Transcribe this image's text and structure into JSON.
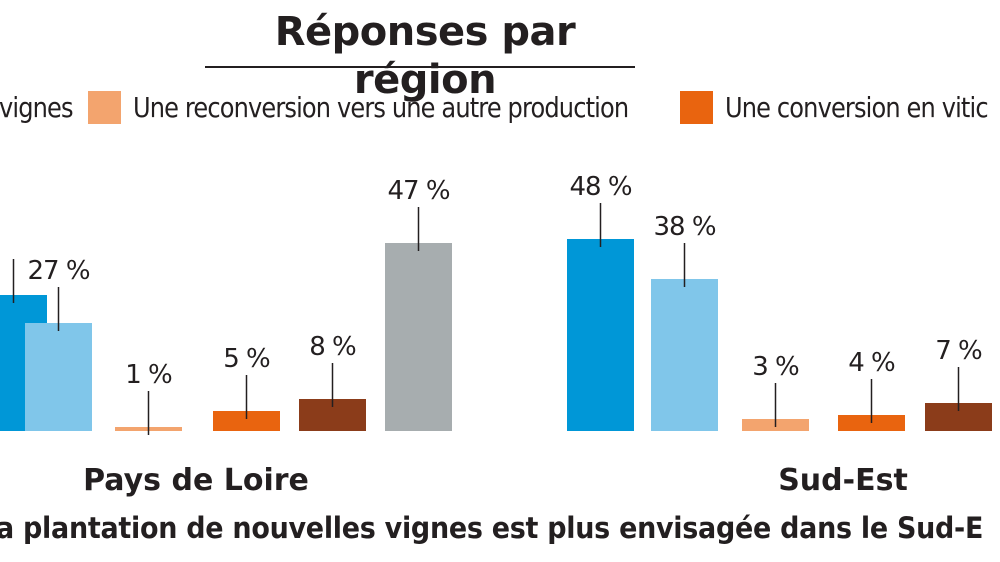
{
  "title": "Réponses par région",
  "legend": [
    {
      "label": "vignes",
      "color": "#0097d7"
    },
    {
      "label": "Une reconversion vers une autre production",
      "color": "#f3a46e"
    },
    {
      "label": "Une conversion en vitic",
      "color": "#e9640f"
    }
  ],
  "caption": "a plantation de nouvelles vignes est plus envisagée dans le Sud-E",
  "chart_data": {
    "type": "bar",
    "title": "Réponses par région",
    "ylim": [
      0,
      50
    ],
    "series_colors": [
      "#0097d7",
      "#80c6ea",
      "#f3a46e",
      "#e9640f",
      "#8b3c1a",
      "#a7adaf"
    ],
    "groups": [
      {
        "name": "Pays de Loire",
        "bars": [
          {
            "value": 34,
            "label": "",
            "color": "#0097d7"
          },
          {
            "value": 27,
            "label": "27 %",
            "color": "#80c6ea"
          },
          {
            "value": 1,
            "label": "1 %",
            "color": "#f3a46e"
          },
          {
            "value": 5,
            "label": "5 %",
            "color": "#e9640f"
          },
          {
            "value": 8,
            "label": "8 %",
            "color": "#8b3c1a"
          },
          {
            "value": 47,
            "label": "47 %",
            "color": "#a7adaf"
          }
        ]
      },
      {
        "name": "Sud-Est",
        "bars": [
          {
            "value": 48,
            "label": "48 %",
            "color": "#0097d7"
          },
          {
            "value": 38,
            "label": "38 %",
            "color": "#80c6ea"
          },
          {
            "value": 3,
            "label": "3 %",
            "color": "#f3a46e"
          },
          {
            "value": 4,
            "label": "4 %",
            "color": "#e9640f"
          },
          {
            "value": 7,
            "label": "7 %",
            "color": "#8b3c1a"
          }
        ]
      }
    ]
  }
}
